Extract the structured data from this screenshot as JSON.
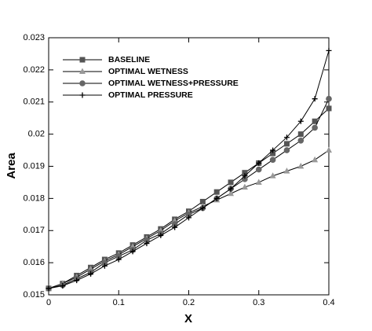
{
  "chart_data": {
    "type": "line",
    "x_label": "X",
    "y_label": "Area",
    "x": [
      0,
      0.02,
      0.04,
      0.06,
      0.08,
      0.1,
      0.12,
      0.14,
      0.16,
      0.18,
      0.2,
      0.22,
      0.24,
      0.26,
      0.28,
      0.3,
      0.32,
      0.34,
      0.36,
      0.38,
      0.4
    ],
    "series": [
      {
        "name": "BASELINE",
        "color": "#555555",
        "marker": "square",
        "values": [
          0.0152,
          0.01535,
          0.0156,
          0.01585,
          0.0161,
          0.0163,
          0.01655,
          0.0168,
          0.01705,
          0.01735,
          0.0176,
          0.0179,
          0.0182,
          0.0185,
          0.0188,
          0.0191,
          0.0194,
          0.0197,
          0.02,
          0.0204,
          0.0208
        ]
      },
      {
        "name": "OPTIMAL WETNESS",
        "color": "#999999",
        "marker": "triangle",
        "values": [
          0.0152,
          0.01535,
          0.01555,
          0.0158,
          0.01605,
          0.01625,
          0.0165,
          0.01675,
          0.017,
          0.0173,
          0.01755,
          0.01775,
          0.01795,
          0.01815,
          0.01835,
          0.0185,
          0.0187,
          0.01885,
          0.019,
          0.0192,
          0.0195
        ]
      },
      {
        "name": "OPTIMAL WETNESS+PRESSURE",
        "color": "#666666",
        "marker": "circle",
        "values": [
          0.0152,
          0.0153,
          0.0155,
          0.0157,
          0.016,
          0.0162,
          0.0164,
          0.0167,
          0.0169,
          0.0172,
          0.0175,
          0.0177,
          0.018,
          0.0183,
          0.0186,
          0.0189,
          0.0192,
          0.0195,
          0.0198,
          0.0202,
          0.0211
        ]
      },
      {
        "name": "OPTIMAL PRESSURE",
        "color": "#000000",
        "marker": "plus",
        "values": [
          0.0152,
          0.01528,
          0.01545,
          0.01565,
          0.0159,
          0.0161,
          0.01635,
          0.0166,
          0.01685,
          0.0171,
          0.0174,
          0.0177,
          0.018,
          0.0183,
          0.0187,
          0.0191,
          0.0195,
          0.0199,
          0.0204,
          0.0211,
          0.0226
        ]
      }
    ],
    "xlim": [
      0,
      0.4
    ],
    "xticks": [
      0,
      0.1,
      0.2,
      0.3,
      0.4
    ],
    "ylim": [
      0.015,
      0.023
    ],
    "yticks": [
      0.015,
      0.016,
      0.017,
      0.018,
      0.019,
      0.02,
      0.021,
      0.022,
      0.023
    ],
    "legend": "upper-left",
    "grid": false
  }
}
